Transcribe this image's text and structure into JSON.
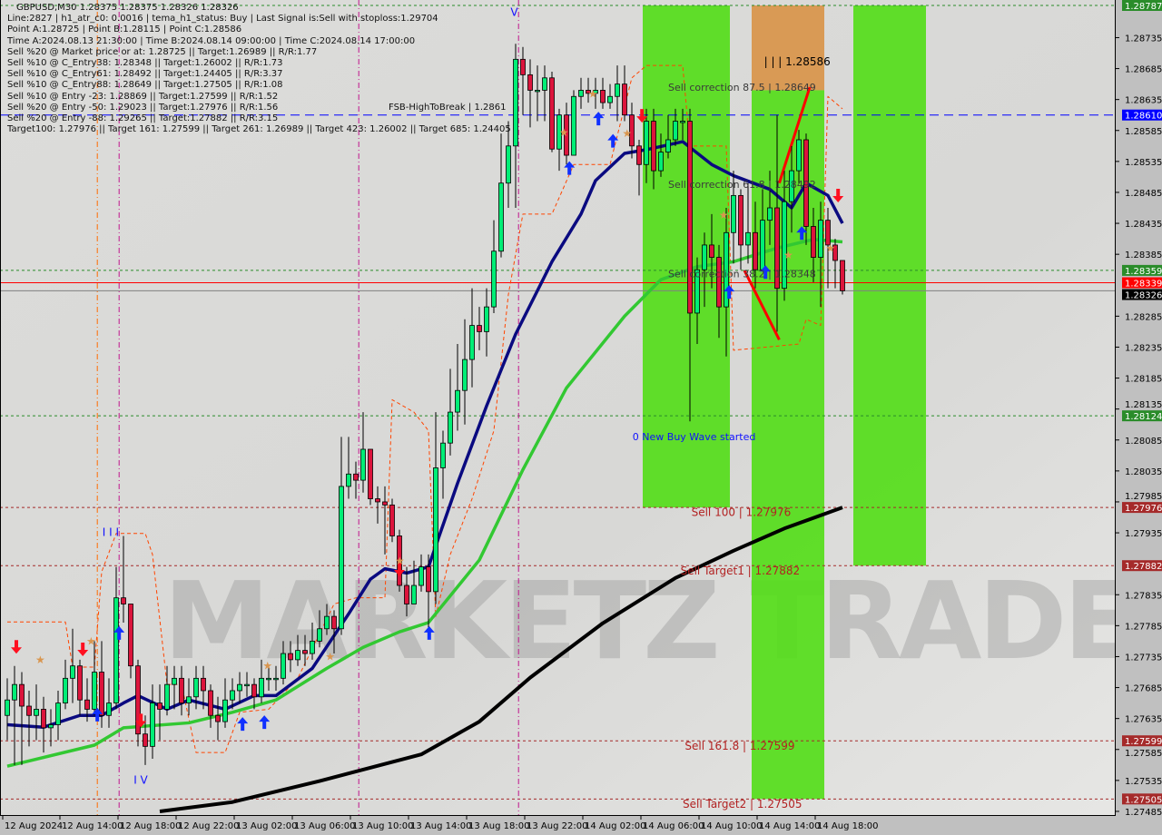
{
  "header": {
    "title": "GBPUSD,M30  1.28375 1.28375 1.28326 1.28326",
    "lines": [
      "Line:2827 | h1_atr_c0: 0.0016 | tema_h1_status: Buy | Last Signal is:Sell with stoploss:1.29704",
      "Point A:1.28725 | Point B:1.28115 | Point C:1.28586",
      "Time A:2024.08.13 21:30:00 | Time B:2024.08.14 09:00:00 | Time C:2024.08.14 17:00:00",
      "Sell %20 @ Market price or at: 1.28725 || Target:1.26989 || R/R:1.77",
      "Sell %10 @ C_Entry38: 1.28348 || Target:1.26002 || R/R:1.73",
      "Sell %10 @ C_Entry61: 1.28492 || Target:1.24405 || R/R:3.37",
      "Sell %10 @ C_Entry88: 1.28649 || Target:1.27505 || R/R:1.08",
      "Sell %10 @ Entry -23: 1.28869 || Target:1.27599 || R/R:1.52",
      "Sell %20 @ Entry -50: 1.29023 || Target:1.27976 || R/R:1.56",
      "Sell %20 @ Entry -88: 1.29265 || Target:1.27882 || R/R:3.15",
      "Target100: 1.27976 || Target 161: 1.27599 || Target 261: 1.26989 || Target 423: 1.26002 || Target 685: 1.24405"
    ],
    "overlay_label": "FSB-HighToBreak | 1.2861"
  },
  "watermark": "MARKETZ TRADE",
  "chart_data": {
    "type": "candlestick",
    "symbol": "GBPUSD",
    "timeframe": "M30",
    "ylim": [
      1.27485,
      1.28787
    ],
    "grid": false,
    "colors": {
      "bull": "#00ee76",
      "bear": "#dc143c",
      "ema_fast": "#0a0a80",
      "ema_mid": "#32c832",
      "ma_slow": "#000000",
      "trail": "#ff4500",
      "zone_green": "#55dd1a",
      "zone_orange": "#d99a55"
    },
    "close": [
      1.27665,
      1.2769,
      1.27655,
      1.2764,
      1.2765,
      1.2762,
      1.27625,
      1.2766,
      1.277,
      1.2772,
      1.27665,
      1.2765,
      1.2771,
      1.2764,
      1.2766,
      1.2783,
      1.2782,
      1.2772,
      1.2761,
      1.2759,
      1.2766,
      1.2765,
      1.2769,
      1.277,
      1.2766,
      1.2767,
      1.277,
      1.2768,
      1.2764,
      1.2763,
      1.27665,
      1.2768,
      1.2769,
      1.2769,
      1.2767,
      1.277,
      1.277,
      1.277,
      1.2774,
      1.2773,
      1.27745,
      1.2774,
      1.2776,
      1.2778,
      1.278,
      1.2778,
      1.2801,
      1.2803,
      1.2802,
      1.2807,
      1.2799,
      1.27985,
      1.2798,
      1.2793,
      1.2785,
      1.2782,
      1.2785,
      1.2788,
      1.2784,
      1.2804,
      1.2808,
      1.2813,
      1.28165,
      1.28215,
      1.2827,
      1.2826,
      1.283,
      1.2839,
      1.285,
      1.2856,
      1.287,
      1.28675,
      1.2865,
      1.2865,
      1.2867,
      1.28555,
      1.2861,
      1.28545,
      1.2864,
      1.2865,
      1.28645,
      1.2865,
      1.2863,
      1.2864,
      1.2866,
      1.2861,
      1.2856,
      1.2853,
      1.286,
      1.2852,
      1.2855,
      1.2857,
      1.286,
      1.286,
      1.2829,
      1.2836,
      1.284,
      1.2838,
      1.283,
      1.2842,
      1.2848,
      1.284,
      1.2842,
      1.2836,
      1.2844,
      1.2846,
      1.2833,
      1.2847,
      1.2852,
      1.2857,
      1.2843,
      1.2838,
      1.2844,
      1.284,
      1.28375,
      1.28326
    ],
    "high": [
      1.277,
      1.2772,
      1.2771,
      1.2768,
      1.2769,
      1.2767,
      1.2765,
      1.2768,
      1.2773,
      1.2778,
      1.2773,
      1.277,
      1.2776,
      1.2776,
      1.277,
      1.2788,
      1.2793,
      1.2782,
      1.2773,
      1.2764,
      1.2769,
      1.2769,
      1.2772,
      1.2772,
      1.2772,
      1.277,
      1.2772,
      1.2772,
      1.2769,
      1.2767,
      1.277,
      1.277,
      1.2771,
      1.2771,
      1.277,
      1.2773,
      1.2772,
      1.2772,
      1.2776,
      1.2776,
      1.2777,
      1.2777,
      1.2779,
      1.2781,
      1.2782,
      1.2781,
      1.2809,
      1.2809,
      1.2805,
      1.2813,
      1.2807,
      1.2801,
      1.2801,
      1.2799,
      1.2794,
      1.2788,
      1.2789,
      1.279,
      1.279,
      1.2813,
      1.281,
      1.282,
      1.2824,
      1.2828,
      1.2833,
      1.283,
      1.2833,
      1.2844,
      1.2858,
      1.286,
      1.28725,
      1.2872,
      1.287,
      1.2869,
      1.2869,
      1.2868,
      1.2862,
      1.2863,
      1.2865,
      1.2867,
      1.2867,
      1.2867,
      1.2867,
      1.2866,
      1.2869,
      1.2869,
      1.2863,
      1.2857,
      1.2862,
      1.2862,
      1.2858,
      1.2861,
      1.2862,
      1.2862,
      1.2862,
      1.2838,
      1.2842,
      1.2845,
      1.284,
      1.2846,
      1.2852,
      1.2849,
      1.285,
      1.2847,
      1.2849,
      1.2852,
      1.2861,
      1.2852,
      1.2856,
      1.28586,
      1.2858,
      1.2846,
      1.2847,
      1.2846,
      1.2841,
      1.28375
    ],
    "low": [
      1.276,
      1.2756,
      1.2756,
      1.2759,
      1.276,
      1.2758,
      1.2759,
      1.276,
      1.2765,
      1.2766,
      1.2764,
      1.2763,
      1.2764,
      1.2762,
      1.2762,
      1.2765,
      1.2779,
      1.277,
      1.2759,
      1.2756,
      1.2757,
      1.276,
      1.2764,
      1.2765,
      1.2764,
      1.2764,
      1.2765,
      1.2765,
      1.2762,
      1.276,
      1.2762,
      1.2765,
      1.2766,
      1.2767,
      1.2765,
      1.2766,
      1.2768,
      1.2768,
      1.2769,
      1.2771,
      1.2772,
      1.2772,
      1.2773,
      1.2775,
      1.2777,
      1.2774,
      1.2777,
      1.2799,
      1.2799,
      1.28,
      1.2798,
      1.2795,
      1.279,
      1.2792,
      1.2784,
      1.278,
      1.2782,
      1.2784,
      1.2778,
      1.2782,
      1.2799,
      1.2806,
      1.281,
      1.2811,
      1.2817,
      1.2823,
      1.2822,
      1.2829,
      1.2838,
      1.2846,
      1.2846,
      1.2861,
      1.2859,
      1.286,
      1.286,
      1.2855,
      1.2852,
      1.2853,
      1.2856,
      1.2862,
      1.2863,
      1.2862,
      1.2862,
      1.2862,
      1.286,
      1.286,
      1.2854,
      1.2848,
      1.285,
      1.2849,
      1.2851,
      1.2854,
      1.2856,
      1.2857,
      1.28115,
      1.2824,
      1.283,
      1.2833,
      1.2825,
      1.2822,
      1.2837,
      1.2836,
      1.2837,
      1.2833,
      1.2836,
      1.284,
      1.2826,
      1.2831,
      1.2842,
      1.285,
      1.284,
      1.2834,
      1.283,
      1.2833,
      1.2833,
      1.2832
    ],
    "first_open": 1.2764,
    "ema_fast": [
      [
        0,
        1.27625
      ],
      [
        5,
        1.27621
      ],
      [
        10,
        1.2764
      ],
      [
        13,
        1.2764
      ],
      [
        16,
        1.2766
      ],
      [
        18,
        1.27672
      ],
      [
        22,
        1.2765
      ],
      [
        25,
        1.27665
      ],
      [
        30,
        1.2765
      ],
      [
        34,
        1.27672
      ],
      [
        37,
        1.27672
      ],
      [
        42,
        1.27716
      ],
      [
        47,
        1.27804
      ],
      [
        50,
        1.2786
      ],
      [
        52,
        1.27877
      ],
      [
        55,
        1.2787
      ],
      [
        58,
        1.2788
      ],
      [
        62,
        1.28015
      ],
      [
        66,
        1.2814
      ],
      [
        70,
        1.28256
      ],
      [
        75,
        1.28373
      ],
      [
        79,
        1.2845
      ],
      [
        81,
        1.28504
      ],
      [
        85,
        1.28548
      ],
      [
        88,
        1.28554
      ],
      [
        93,
        1.28567
      ],
      [
        97,
        1.2853
      ],
      [
        100,
        1.28512
      ],
      [
        105,
        1.2849
      ],
      [
        108,
        1.2846
      ],
      [
        110,
        1.285
      ],
      [
        113,
        1.2848
      ],
      [
        115,
        1.28435
      ]
    ],
    "ema_mid": [
      [
        0,
        1.27558
      ],
      [
        12,
        1.27592
      ],
      [
        16,
        1.2762
      ],
      [
        25,
        1.27628
      ],
      [
        31,
        1.27645
      ],
      [
        37,
        1.27665
      ],
      [
        44,
        1.27716
      ],
      [
        49,
        1.2775
      ],
      [
        54,
        1.27775
      ],
      [
        58,
        1.2779
      ],
      [
        65,
        1.27891
      ],
      [
        71,
        1.28037
      ],
      [
        77,
        1.28169
      ],
      [
        85,
        1.28285
      ],
      [
        90,
        1.28344
      ],
      [
        95,
        1.28365
      ],
      [
        100,
        1.28373
      ],
      [
        106,
        1.28395
      ],
      [
        111,
        1.28409
      ],
      [
        115,
        1.28405
      ]
    ],
    "ma_slow": [
      [
        21,
        1.27485
      ],
      [
        31,
        1.275
      ],
      [
        43,
        1.27534
      ],
      [
        57,
        1.27577
      ],
      [
        65,
        1.2763
      ],
      [
        72,
        1.27701
      ],
      [
        82,
        1.27789
      ],
      [
        92,
        1.27862
      ],
      [
        100,
        1.27906
      ],
      [
        107,
        1.27942
      ],
      [
        115,
        1.27976
      ]
    ],
    "trail": [
      [
        0,
        1.27791
      ],
      [
        8,
        1.27791
      ],
      [
        9,
        1.27718
      ],
      [
        12,
        1.27718
      ],
      [
        13,
        1.27872
      ],
      [
        15,
        1.27934
      ],
      [
        19,
        1.27934
      ],
      [
        20,
        1.279
      ],
      [
        22,
        1.2769
      ],
      [
        24,
        1.2769
      ],
      [
        26,
        1.2758
      ],
      [
        30,
        1.2758
      ],
      [
        32,
        1.27645
      ],
      [
        36,
        1.2765
      ],
      [
        40,
        1.277
      ],
      [
        45,
        1.2782
      ],
      [
        48,
        1.2783
      ],
      [
        52,
        1.2783
      ],
      [
        53,
        1.2815
      ],
      [
        56,
        1.2813
      ],
      [
        58,
        1.281
      ],
      [
        59,
        1.278
      ],
      [
        61,
        1.279
      ],
      [
        64,
        1.2799
      ],
      [
        67,
        1.281
      ],
      [
        69,
        1.2832
      ],
      [
        71,
        1.2845
      ],
      [
        75,
        1.2845
      ],
      [
        78,
        1.2853
      ],
      [
        83,
        1.2853
      ],
      [
        86,
        1.2867
      ],
      [
        88,
        1.2869
      ],
      [
        93,
        1.2869
      ],
      [
        94,
        1.2856
      ],
      [
        99,
        1.2856
      ],
      [
        100,
        1.2823
      ],
      [
        109,
        1.2824
      ],
      [
        110,
        1.2828
      ],
      [
        112,
        1.2827
      ],
      [
        113,
        1.2864
      ],
      [
        115,
        1.2862
      ]
    ],
    "zones": [
      {
        "color": "green",
        "from_bar": 87.5,
        "to_bar": 99.5,
        "top": 1.28787,
        "bottom": 1.27976
      },
      {
        "color": "orange",
        "from_bar": 102.5,
        "to_bar": 112.5,
        "top": 1.28787,
        "bottom": 1.2865
      },
      {
        "color": "green",
        "from_bar": 102.5,
        "to_bar": 112.5,
        "top": 1.2865,
        "bottom": 1.27505
      },
      {
        "color": "green",
        "from_bar": 116.5,
        "to_bar": 126.5,
        "top": 1.28787,
        "bottom": 1.27882
      }
    ],
    "red_segments": [
      [
        [
          106.3,
          1.285
        ],
        [
          110.5,
          1.28655
        ]
      ],
      [
        [
          101.5,
          1.28359
        ],
        [
          106.3,
          1.28247
        ]
      ]
    ],
    "levels": [
      {
        "price": "1.28787",
        "color": "#2a8c2a",
        "style": "dotted",
        "label_bg": "#2a8c2a"
      },
      {
        "price": "1.28610",
        "color": "#0000ff",
        "style": "dashed",
        "label_bg": "#0000ff"
      },
      {
        "price": "1.28359",
        "color": "#2a8c2a",
        "style": "dotted",
        "label_bg": "#2a8c2a"
      },
      {
        "price": "1.28339",
        "color": "#ff0000",
        "style": "solid",
        "label_bg": "#ff0000"
      },
      {
        "price": "1.28326",
        "color": "#808080",
        "style": "solid",
        "label_bg": "#000000"
      },
      {
        "price": "1.28124",
        "color": "#2a8c2a",
        "style": "dotted",
        "label_bg": "#2a8c2a"
      },
      {
        "price": "1.27976",
        "color": "#a52a2a",
        "style": "dotted",
        "label_bg": "#a52a2a"
      },
      {
        "price": "1.27882",
        "color": "#a52a2a",
        "style": "dotted",
        "label_bg": "#a52a2a"
      },
      {
        "price": "1.27599",
        "color": "#a52a2a",
        "style": "dotted",
        "label_bg": "#a52a2a"
      },
      {
        "price": "1.27505",
        "color": "#a52a2a",
        "style": "dotted",
        "label_bg": "#a52a2a"
      }
    ],
    "vlines": [
      {
        "bar": 15.4,
        "color": "#c0148c"
      },
      {
        "bar": 48.4,
        "color": "#c0148c"
      },
      {
        "bar": 70.4,
        "color": "#c0148c"
      },
      {
        "bar": 12.4,
        "color": "#ff6a00"
      }
    ],
    "annotations": [
      {
        "text": "Sell correction 87.5 | 1.28649",
        "bar": 91,
        "price": 1.28649,
        "color": "#3a3a3a"
      },
      {
        "text": "Sell correction 61.8 | 1.28492",
        "bar": 91,
        "price": 1.28492,
        "color": "#3a3a3a"
      },
      {
        "text": "Sell correction 38.2 | 1.28348",
        "bar": 91,
        "price": 1.28348,
        "color": "#3a3a3a"
      },
      {
        "text": "| | | 1.28586",
        "bar": 104.2,
        "price": 1.2869,
        "color": "#000000",
        "big": true
      },
      {
        "text": "0 New Buy Wave started",
        "bar": 86.1,
        "price": 1.28085,
        "color": "#1010ff"
      },
      {
        "text": "Sell 100 | 1.27976",
        "bar": 94.2,
        "price": 1.27962,
        "color": "#b22222",
        "big": true
      },
      {
        "text": "Sell Target1 | 1.27882",
        "bar": 92.7,
        "price": 1.27868,
        "color": "#b22222",
        "big": true
      },
      {
        "text": "Sell 161.8 | 1.27599",
        "bar": 93.3,
        "price": 1.27585,
        "color": "#b22222",
        "big": true
      },
      {
        "text": "Sell Target2 | 1.27505",
        "bar": 93,
        "price": 1.27491,
        "color": "#b22222",
        "big": true
      },
      {
        "text": "V",
        "bar": 69.3,
        "price": 1.2877,
        "color": "#1010ff",
        "big": true
      },
      {
        "text": "I I I",
        "bar": 13.1,
        "price": 1.2793,
        "color": "#1010ff",
        "big": true
      },
      {
        "text": "I V",
        "bar": 17.4,
        "price": 1.2753,
        "color": "#1010ff",
        "big": true
      }
    ],
    "arrows_up": [
      [
        15.4,
        1.27774
      ],
      [
        12.4,
        1.27642
      ],
      [
        32.4,
        1.27627
      ],
      [
        35.4,
        1.2763
      ],
      [
        58.1,
        1.27774
      ],
      [
        77.4,
        1.28525
      ],
      [
        81.4,
        1.28605
      ],
      [
        83.4,
        1.28569
      ],
      [
        99.4,
        1.28325
      ],
      [
        104.4,
        1.28357
      ],
      [
        109.4,
        1.2842
      ]
    ],
    "arrows_down": [
      [
        1.25,
        1.2775
      ],
      [
        10.4,
        1.27746
      ],
      [
        18.4,
        1.27631
      ],
      [
        54,
        1.27875
      ],
      [
        87.4,
        1.28608
      ],
      [
        114.4,
        1.28479
      ]
    ],
    "stars": [
      [
        80.6,
        1.28644
      ],
      [
        76.6,
        1.28582
      ],
      [
        85.3,
        1.2858
      ],
      [
        98.6,
        1.28448
      ],
      [
        107.5,
        1.28384
      ],
      [
        113.3,
        1.28395
      ],
      [
        54,
        1.2789
      ],
      [
        4.5,
        1.2773
      ],
      [
        11.5,
        1.2776
      ],
      [
        35.8,
        1.2772
      ],
      [
        44.4,
        1.27735
      ]
    ],
    "price_ticks": [
      "1.28735",
      "1.28685",
      "1.28635",
      "1.28585",
      "1.28535",
      "1.28485",
      "1.28435",
      "1.28385",
      "1.28285",
      "1.28235",
      "1.28185",
      "1.28135",
      "1.28085",
      "1.28035",
      "1.27985",
      "1.27935",
      "1.27835",
      "1.27785",
      "1.27735",
      "1.27685",
      "1.27635",
      "1.27585",
      "1.27535",
      "1.27485"
    ],
    "time_labels": [
      "12 Aug 2024",
      "12 Aug 14:00",
      "12 Aug 18:00",
      "12 Aug 22:00",
      "13 Aug 02:00",
      "13 Aug 06:00",
      "13 Aug 10:00",
      "13 Aug 14:00",
      "13 Aug 18:00",
      "13 Aug 22:00",
      "14 Aug 02:00",
      "14 Aug 06:00",
      "14 Aug 10:00",
      "14 Aug 14:00",
      "14 Aug 18:00"
    ]
  }
}
